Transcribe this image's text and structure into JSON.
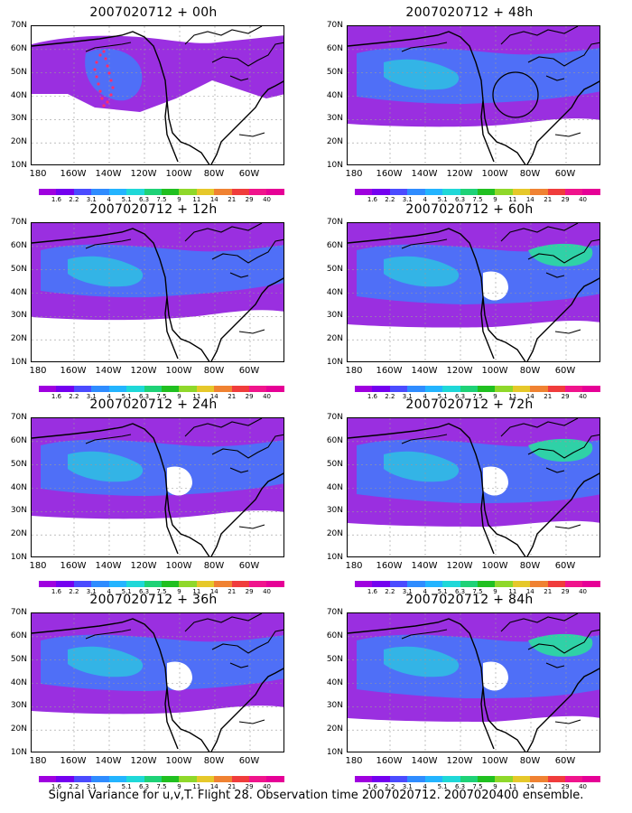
{
  "panels": [
    {
      "title": "2007020712 + 00h",
      "level": 0
    },
    {
      "title": "2007020712 + 48h",
      "level": 2
    },
    {
      "title": "2007020712 + 12h",
      "level": 1
    },
    {
      "title": "2007020712 + 60h",
      "level": 3
    },
    {
      "title": "2007020712 + 24h",
      "level": 2
    },
    {
      "title": "2007020712 + 72h",
      "level": 4
    },
    {
      "title": "2007020712 + 36h",
      "level": 2
    },
    {
      "title": "2007020712 + 84h",
      "level": 4
    }
  ],
  "lat_labels": [
    "70N",
    "60N",
    "50N",
    "40N",
    "30N",
    "20N",
    "10N"
  ],
  "lon_labels": [
    "180",
    "160W",
    "140W",
    "120W",
    "100W",
    "80W",
    "60W"
  ],
  "colorbar": {
    "labels": [
      "1.6",
      "2.2",
      "3.1",
      "4",
      "5.1",
      "6.3",
      "7.5",
      "9",
      "11",
      "14",
      "21",
      "29",
      "40"
    ],
    "colors": [
      "#9f00df",
      "#7400f0",
      "#4b4bff",
      "#2f8cff",
      "#23b4ff",
      "#1fd8d8",
      "#1ed277",
      "#20c020",
      "#8fd82a",
      "#e6c82a",
      "#f08232",
      "#f03c3c",
      "#f0148c",
      "#e60096"
    ]
  },
  "map_colors": {
    "low": "#9a2fe0",
    "mid": "#4f6ff7",
    "high": "#33b4e6",
    "peak": "#2fd1a7",
    "land": "#000000"
  },
  "caption": "Signal Variance for u,v,T. Flight 28. Observation time 2007020712. 2007020400 ensemble."
}
